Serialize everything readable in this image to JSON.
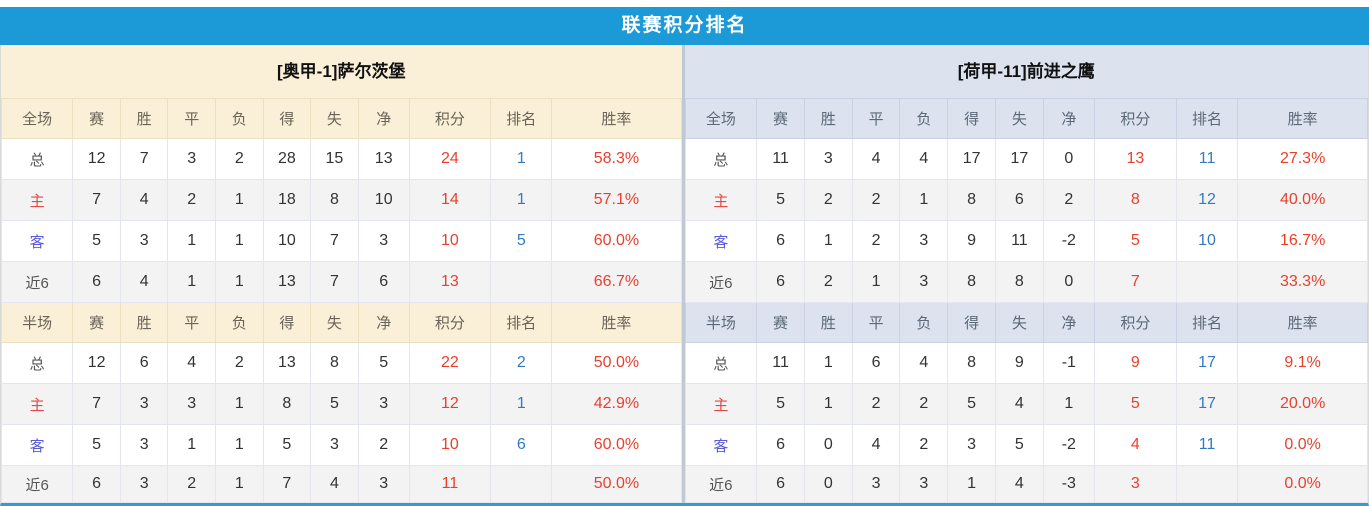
{
  "header": {
    "title": "联赛积分排名"
  },
  "columns": [
    "赛",
    "胜",
    "平",
    "负",
    "得",
    "失",
    "净",
    "积分",
    "排名",
    "胜率"
  ],
  "colors": {
    "title_bar_bg": "#1b9ad7",
    "left_theme_bg": "#faf0d7",
    "right_theme_bg": "#dce3ee",
    "points_text": "#e8402d",
    "rank_text": "#3479c2",
    "rate_text": "#e8402d",
    "home_label_text": "#e04a45",
    "away_label_text": "#5a5ad8",
    "alt_row_bg": "#f3f3f4",
    "bottom_border": "#2a9fd8"
  },
  "tables": [
    {
      "team_title": "[奥甲-1]萨尔茨堡",
      "theme": "cream",
      "sections": [
        {
          "scope_label": "全场",
          "rows": [
            {
              "label": "总",
              "type": "plain",
              "cells": [
                "12",
                "7",
                "3",
                "2",
                "28",
                "15",
                "13"
              ],
              "points": "24",
              "rank": "1",
              "rate": "58.3%"
            },
            {
              "label": "主",
              "type": "home",
              "cells": [
                "7",
                "4",
                "2",
                "1",
                "18",
                "8",
                "10"
              ],
              "points": "14",
              "rank": "1",
              "rate": "57.1%"
            },
            {
              "label": "客",
              "type": "away",
              "cells": [
                "5",
                "3",
                "1",
                "1",
                "10",
                "7",
                "3"
              ],
              "points": "10",
              "rank": "5",
              "rate": "60.0%"
            },
            {
              "label": "近6",
              "type": "plain",
              "cells": [
                "6",
                "4",
                "1",
                "1",
                "13",
                "7",
                "6"
              ],
              "points": "13",
              "rank": "",
              "rate": "66.7%"
            }
          ]
        },
        {
          "scope_label": "半场",
          "rows": [
            {
              "label": "总",
              "type": "plain",
              "cells": [
                "12",
                "6",
                "4",
                "2",
                "13",
                "8",
                "5"
              ],
              "points": "22",
              "rank": "2",
              "rate": "50.0%"
            },
            {
              "label": "主",
              "type": "home",
              "cells": [
                "7",
                "3",
                "3",
                "1",
                "8",
                "5",
                "3"
              ],
              "points": "12",
              "rank": "1",
              "rate": "42.9%"
            },
            {
              "label": "客",
              "type": "away",
              "cells": [
                "5",
                "3",
                "1",
                "1",
                "5",
                "3",
                "2"
              ],
              "points": "10",
              "rank": "6",
              "rate": "60.0%"
            },
            {
              "label": "近6",
              "type": "plain",
              "cells": [
                "6",
                "3",
                "2",
                "1",
                "7",
                "4",
                "3"
              ],
              "points": "11",
              "rank": "",
              "rate": "50.0%"
            }
          ]
        }
      ]
    },
    {
      "team_title": "[荷甲-11]前进之鹰",
      "theme": "blue",
      "sections": [
        {
          "scope_label": "全场",
          "rows": [
            {
              "label": "总",
              "type": "plain",
              "cells": [
                "11",
                "3",
                "4",
                "4",
                "17",
                "17",
                "0"
              ],
              "points": "13",
              "rank": "11",
              "rate": "27.3%"
            },
            {
              "label": "主",
              "type": "home",
              "cells": [
                "5",
                "2",
                "2",
                "1",
                "8",
                "6",
                "2"
              ],
              "points": "8",
              "rank": "12",
              "rate": "40.0%"
            },
            {
              "label": "客",
              "type": "away",
              "cells": [
                "6",
                "1",
                "2",
                "3",
                "9",
                "11",
                "-2"
              ],
              "points": "5",
              "rank": "10",
              "rate": "16.7%"
            },
            {
              "label": "近6",
              "type": "plain",
              "cells": [
                "6",
                "2",
                "1",
                "3",
                "8",
                "8",
                "0"
              ],
              "points": "7",
              "rank": "",
              "rate": "33.3%"
            }
          ]
        },
        {
          "scope_label": "半场",
          "rows": [
            {
              "label": "总",
              "type": "plain",
              "cells": [
                "11",
                "1",
                "6",
                "4",
                "8",
                "9",
                "-1"
              ],
              "points": "9",
              "rank": "17",
              "rate": "9.1%"
            },
            {
              "label": "主",
              "type": "home",
              "cells": [
                "5",
                "1",
                "2",
                "2",
                "5",
                "4",
                "1"
              ],
              "points": "5",
              "rank": "17",
              "rate": "20.0%"
            },
            {
              "label": "客",
              "type": "away",
              "cells": [
                "6",
                "0",
                "4",
                "2",
                "3",
                "5",
                "-2"
              ],
              "points": "4",
              "rank": "11",
              "rate": "0.0%"
            },
            {
              "label": "近6",
              "type": "plain",
              "cells": [
                "6",
                "0",
                "3",
                "3",
                "1",
                "4",
                "-3"
              ],
              "points": "3",
              "rank": "",
              "rate": "0.0%"
            }
          ]
        }
      ]
    }
  ]
}
